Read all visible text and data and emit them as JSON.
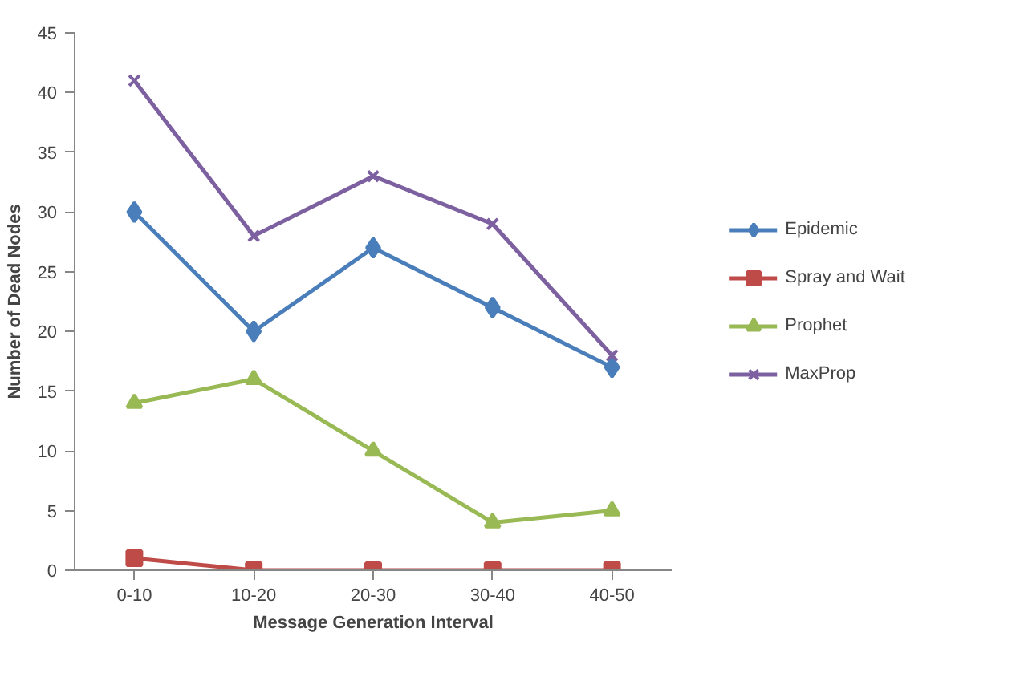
{
  "chart_data": {
    "type": "line",
    "xlabel": "Message Generation Interval",
    "ylabel": "Number of Dead Nodes",
    "categories": [
      "0-10",
      "10-20",
      "20-30",
      "30-40",
      "40-50"
    ],
    "series": [
      {
        "name": "Epidemic",
        "color": "#4a7ebb",
        "marker": "diamond",
        "values": [
          30,
          20,
          27,
          22,
          17
        ]
      },
      {
        "name": "Spray and Wait",
        "color": "#be4b48",
        "marker": "square",
        "values": [
          1,
          0,
          0,
          0,
          0
        ]
      },
      {
        "name": "Prophet",
        "color": "#98b954",
        "marker": "triangle",
        "values": [
          14,
          16,
          10,
          4,
          5
        ]
      },
      {
        "name": "MaxProp",
        "color": "#7d60a0",
        "marker": "cross",
        "values": [
          41,
          28,
          33,
          29,
          18
        ]
      }
    ],
    "ylim": [
      0,
      45
    ],
    "yticks": [
      0,
      5,
      10,
      15,
      20,
      25,
      30,
      35,
      40,
      45
    ],
    "grid": false,
    "legend": "right",
    "line_style": "solid"
  }
}
